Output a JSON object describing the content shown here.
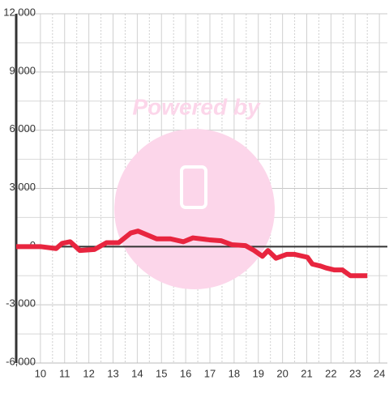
{
  "chart_data": {
    "type": "line",
    "watermark": "Powered by",
    "x": [
      9.0,
      10.0,
      10.65,
      10.9,
      11.23,
      11.63,
      12.23,
      12.73,
      13.23,
      13.73,
      14.03,
      14.8,
      15.37,
      15.9,
      16.3,
      16.97,
      17.47,
      17.9,
      18.47,
      18.83,
      19.17,
      19.4,
      19.73,
      20.17,
      20.5,
      21.03,
      21.23,
      21.57,
      21.8,
      22.13,
      22.47,
      22.8,
      23.5
    ],
    "series": [
      {
        "color": "#e8253f",
        "values": [
          0,
          0,
          -100,
          170,
          250,
          -200,
          -150,
          200,
          200,
          700,
          800,
          400,
          400,
          250,
          450,
          350,
          300,
          100,
          50,
          -200,
          -500,
          -200,
          -600,
          -400,
          -400,
          -550,
          -900,
          -1000,
          -1100,
          -1200,
          -1200,
          -1500,
          -1500
        ]
      }
    ],
    "xlim": [
      9,
      24.33
    ],
    "xticks": [
      10,
      11,
      12,
      13,
      14,
      15,
      16,
      17,
      18,
      19,
      20,
      21,
      22,
      23,
      24
    ],
    "ylim": [
      -6000,
      12000
    ],
    "yticks": [
      {
        "value": -6000,
        "label": "-6,000"
      },
      {
        "value": -3000,
        "label": "-3,000"
      },
      0,
      {
        "value": 3000,
        "label": "3,000"
      },
      {
        "value": 6000,
        "label": "6,000"
      },
      {
        "value": 9000,
        "label": "9,000"
      },
      {
        "value": 12000,
        "label": "12,000"
      }
    ],
    "grid": true
  }
}
